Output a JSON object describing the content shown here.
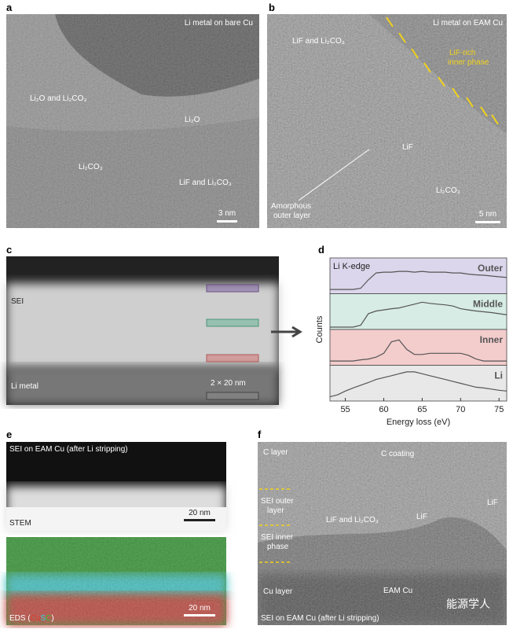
{
  "a": {
    "label": "a",
    "title": "Li metal on bare Cu",
    "annotations": [
      "Li₂O and Li₂CO₃",
      "Li₂O",
      "Li₂CO₃",
      "LiF and Li₂CO₃"
    ],
    "scale_bar": "3 nm"
  },
  "b": {
    "label": "b",
    "title": "Li metal on EAM Cu",
    "annotations": [
      "LiF and Li₂CO₃",
      "LiF",
      "Li₂CO₃"
    ],
    "inner_phase": [
      "LiF-rich",
      "inner phase"
    ],
    "outer_layer": [
      "Amorphous",
      "outer layer"
    ],
    "scale_bar": "5 nm"
  },
  "c": {
    "label": "c",
    "annotations": [
      "SEI",
      "Li metal"
    ],
    "box_size": "2 × 20 nm"
  },
  "d": {
    "label": "d",
    "chart_data": {
      "type": "line",
      "title": "Li K-edge",
      "xlabel": "Energy loss (eV)",
      "ylabel": "Counts",
      "x": [
        53,
        54,
        55,
        56,
        57,
        58,
        59,
        60,
        61,
        62,
        63,
        64,
        65,
        66,
        67,
        68,
        69,
        70,
        71,
        72,
        73,
        74,
        75,
        76
      ],
      "xlim": [
        53,
        76
      ],
      "xticks": [
        55,
        60,
        65,
        70,
        75
      ],
      "series": [
        {
          "name": "Outer",
          "color": "#555555",
          "band_color": "#dcd6ec",
          "values": [
            0.05,
            0.05,
            0.05,
            0.05,
            0.08,
            0.3,
            0.48,
            0.5,
            0.5,
            0.52,
            0.52,
            0.5,
            0.52,
            0.5,
            0.5,
            0.5,
            0.48,
            0.48,
            0.45,
            0.43,
            0.42,
            0.4,
            0.38,
            0.36
          ]
        },
        {
          "name": "Middle",
          "color": "#555555",
          "band_color": "#d6ece5",
          "values": [
            0,
            0,
            0,
            0,
            0.05,
            0.35,
            0.42,
            0.45,
            0.48,
            0.5,
            0.55,
            0.6,
            0.65,
            0.62,
            0.6,
            0.58,
            0.55,
            0.48,
            0.45,
            0.42,
            0.4,
            0.38,
            0.35,
            0.32
          ]
        },
        {
          "name": "Inner",
          "color": "#555555",
          "band_color": "#f3cccc",
          "values": [
            0.05,
            0.05,
            0.05,
            0.05,
            0.08,
            0.1,
            0.15,
            0.25,
            0.55,
            0.6,
            0.35,
            0.22,
            0.22,
            0.25,
            0.25,
            0.25,
            0.25,
            0.25,
            0.2,
            0.1,
            0.05,
            0.05,
            0.05,
            0.05
          ]
        },
        {
          "name": "Li",
          "color": "#555555",
          "band_color": "#e8e8e8",
          "values": [
            0.05,
            0.1,
            0.2,
            0.28,
            0.35,
            0.42,
            0.5,
            0.55,
            0.6,
            0.65,
            0.7,
            0.7,
            0.65,
            0.6,
            0.55,
            0.5,
            0.45,
            0.4,
            0.35,
            0.3,
            0.28,
            0.25,
            0.22,
            0.2
          ]
        }
      ]
    }
  },
  "e": {
    "label": "e",
    "title": "SEI on EAM Cu (after Li stripping)",
    "stem_label": "STEM",
    "scale_bars": [
      "20 nm",
      "20 nm"
    ],
    "eds_label": {
      "prefix": "EDS (",
      "elements": [
        {
          "name": "Cu",
          "color": "#e53b2e"
        },
        {
          "name": "S",
          "color": "#2fd6d6"
        },
        {
          "name": "C",
          "color": "#2fc22f"
        }
      ],
      "suffix": ")"
    }
  },
  "f": {
    "label": "f",
    "annotations": [
      "C layer",
      "C coating",
      "LiF and Li₂CO₃",
      "LiF",
      "LiF",
      "Cu layer",
      "EAM Cu"
    ],
    "outer_layer": [
      "SEI outer",
      "layer"
    ],
    "inner_phase": [
      "SEI inner",
      "phase"
    ],
    "title": "SEI on EAM Cu (after Li stripping)",
    "watermark": "能源学人"
  }
}
